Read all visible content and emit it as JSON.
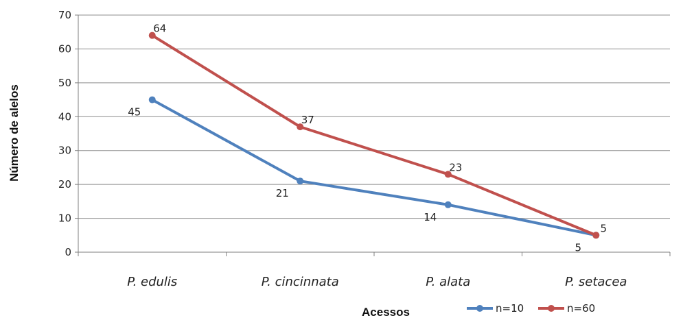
{
  "chart_data": {
    "type": "line",
    "categories": [
      "P. edulis",
      "P. cincinnata",
      "P. alata",
      "P. setacea"
    ],
    "series": [
      {
        "name": "n=10",
        "values": [
          45,
          21,
          14,
          5
        ],
        "color": "#4f81bd"
      },
      {
        "name": "n=60",
        "values": [
          64,
          37,
          23,
          5
        ],
        "color": "#c0504d"
      }
    ],
    "xlabel": "Acessos",
    "ylabel": "Número de alelos",
    "ylim": [
      0,
      70
    ],
    "yticks": [
      0,
      10,
      20,
      30,
      40,
      50,
      60,
      70
    ],
    "grid": true,
    "legend_position": "bottom-right",
    "data_labels": true
  }
}
